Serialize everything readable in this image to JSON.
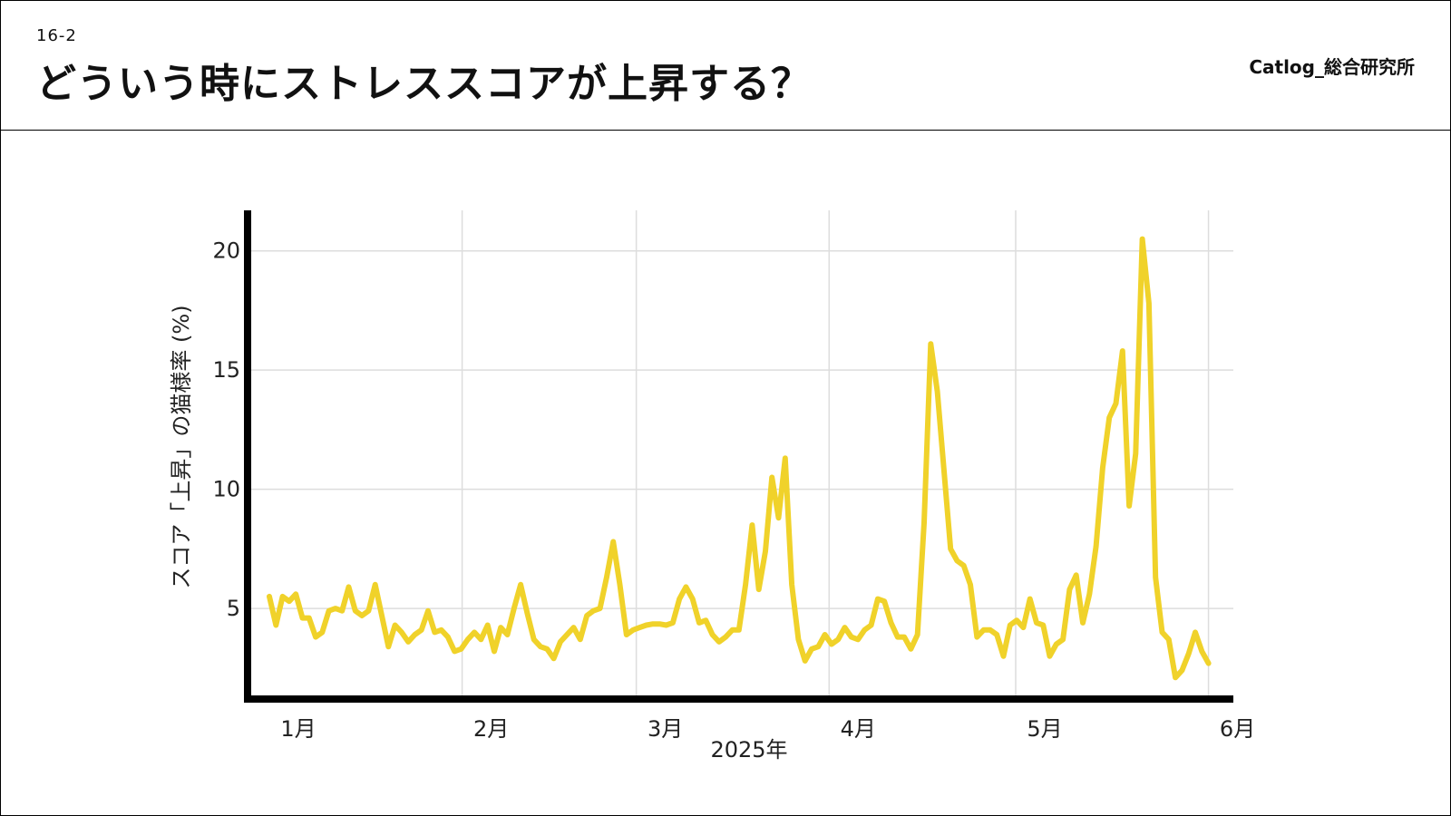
{
  "header": {
    "section_number": "16-2",
    "title": "どういう時にストレススコアが上昇する？",
    "brand": "Catlog_総合研究所"
  },
  "colors": {
    "line": "#F0D22A",
    "axis": "#000000",
    "grid": "#DDDDDD",
    "background": "#FFFFFF"
  },
  "chart_data": {
    "type": "line",
    "title": "",
    "xlabel": "2025年",
    "ylabel": "スコア「上昇」の猫様率 (%)",
    "x_tick_labels": [
      "1月",
      "2月",
      "3月",
      "4月",
      "5月",
      "6月"
    ],
    "y_ticks": [
      5,
      10,
      15,
      20
    ],
    "ylim": [
      1.2,
      21.7
    ],
    "x_range_days": [
      -3.5,
      155
    ],
    "grid": true,
    "legend": "none",
    "series": [
      {
        "values": [
          5.5,
          4.3,
          5.5,
          5.3,
          5.6,
          4.6,
          4.6,
          3.8,
          4.0,
          4.9,
          5.0,
          4.9,
          5.9,
          4.9,
          4.7,
          4.9,
          6.0,
          4.7,
          3.4,
          4.3,
          4.0,
          3.6,
          3.9,
          4.1,
          4.9,
          4.0,
          4.1,
          3.8,
          3.2,
          3.3,
          3.7,
          4.0,
          3.7,
          4.3,
          3.2,
          4.2,
          3.9,
          5.0,
          6.0,
          4.8,
          3.7,
          3.4,
          3.3,
          2.9,
          3.6,
          3.9,
          4.2,
          3.7,
          4.7,
          4.9,
          5.0,
          6.3,
          7.8,
          6.0,
          3.9,
          4.1,
          4.2,
          4.3,
          4.35,
          4.35,
          4.3,
          4.4,
          5.4,
          5.9,
          5.4,
          4.4,
          4.5,
          3.9,
          3.6,
          3.8,
          4.1,
          4.1,
          6.0,
          8.5,
          5.8,
          7.4,
          10.5,
          8.8,
          11.3,
          6.0,
          3.7,
          2.8,
          3.3,
          3.4,
          3.9,
          3.5,
          3.7,
          4.2,
          3.8,
          3.7,
          4.1,
          4.3,
          5.4,
          5.3,
          4.4,
          3.8,
          3.8,
          3.3,
          3.9,
          8.6,
          16.1,
          14.1,
          10.8,
          7.5,
          7.0,
          6.8,
          6.0,
          3.8,
          4.1,
          4.1,
          3.9,
          3.0,
          4.3,
          4.5,
          4.2,
          5.4,
          4.4,
          4.3,
          3.0,
          3.5,
          3.7,
          5.8,
          6.4,
          4.4,
          5.6,
          7.6,
          10.9,
          13.0,
          13.6,
          15.8,
          9.3,
          11.5,
          20.5,
          17.8,
          6.3,
          4.0,
          3.7,
          2.1,
          2.4,
          3.1,
          4.0,
          3.2,
          2.7
        ]
      }
    ]
  }
}
